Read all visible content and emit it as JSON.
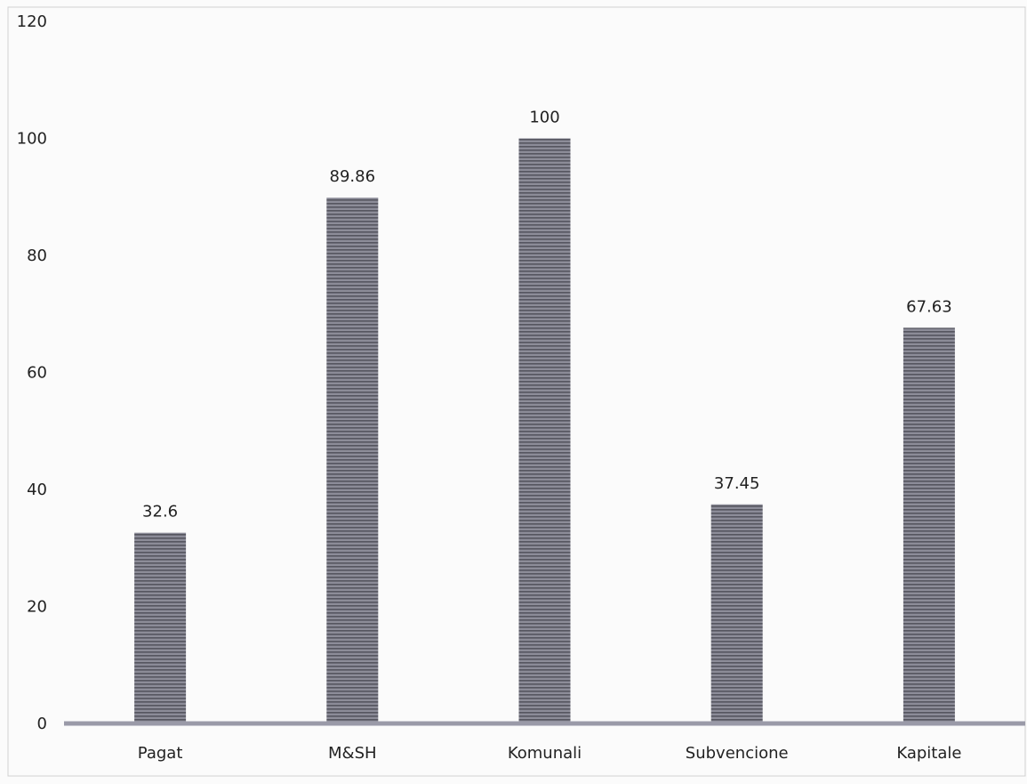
{
  "chart_data": {
    "type": "bar",
    "title": "",
    "xlabel": "",
    "ylabel": "",
    "categories": [
      "Pagat",
      "M&SH",
      "Komunali",
      "Subvencione",
      "Kapitale"
    ],
    "values": [
      32.6,
      89.86,
      100,
      37.45,
      67.63
    ],
    "data_labels": [
      "32.6",
      "89.86",
      "100",
      "37.45",
      "67.63"
    ],
    "ylim": [
      0,
      120
    ],
    "yticks": [
      0,
      20,
      40,
      60,
      80,
      100,
      120
    ],
    "grid": false,
    "legend": "none",
    "bar_color": "#8c8c98",
    "bar_stripe_color": "#55555f",
    "axis_color": "#9a9aa8"
  }
}
